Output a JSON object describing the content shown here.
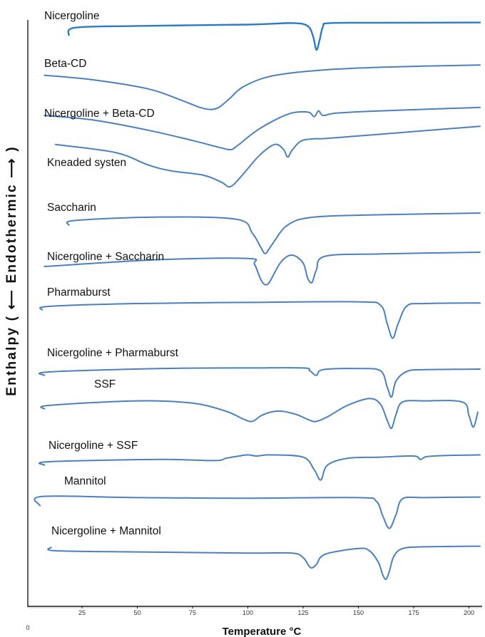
{
  "chart_data": {
    "type": "line",
    "title": "",
    "xlabel": "Temperature °C",
    "ylabel": "Enthalpy ( ⟵ Endothermic ⟶ )",
    "x_ticks": [
      25,
      50,
      75,
      100,
      125,
      150,
      175,
      200
    ],
    "xlim": [
      7,
      205
    ],
    "y_origin_label": "0",
    "grid": false,
    "series": [
      {
        "name": "Nicergoline",
        "x": [
          19,
          22,
          50,
          100,
          120,
          127,
          129.5,
          131,
          132.5,
          134,
          137,
          160,
          205
        ],
        "y": [
          -0.7,
          -0.05,
          0.1,
          0.22,
          0.35,
          0.1,
          -0.8,
          -2.0,
          -1.1,
          0.05,
          0.35,
          0.38,
          0.4
        ]
      },
      {
        "name": "Beta-CD",
        "x": [
          8,
          30,
          55,
          70,
          78,
          83,
          87,
          92,
          98,
          110,
          130,
          160,
          205
        ],
        "y": [
          0.4,
          0,
          -0.8,
          -1.8,
          -2.4,
          -2.6,
          -2.4,
          -1.6,
          -0.6,
          0.3,
          0.8,
          1.1,
          1.3
        ]
      },
      {
        "name": "Nicergoline + Beta-CD",
        "x": [
          8,
          30,
          55,
          75,
          87,
          92,
          95,
          105,
          118,
          127,
          130,
          132,
          134,
          140,
          160,
          205
        ],
        "y": [
          0.5,
          0.1,
          -0.8,
          -1.7,
          -2.3,
          -2.5,
          -2.2,
          -0.7,
          0.6,
          0.8,
          0.4,
          0.9,
          0.5,
          0.7,
          0.9,
          1.2
        ]
      },
      {
        "name": "Kneaded systen",
        "x": [
          13,
          40,
          55,
          65,
          80,
          88,
          92,
          97,
          105,
          112,
          116,
          118,
          120,
          124,
          130,
          140,
          205
        ],
        "y": [
          1.2,
          0.5,
          -0.6,
          -1.1,
          -1.5,
          -2.1,
          -2.5,
          -1.6,
          0.2,
          1.2,
          0.8,
          0.1,
          0.7,
          1.5,
          1.7,
          1.8,
          2.8
        ]
      },
      {
        "name": "Saccharin",
        "x": [
          19,
          22,
          60,
          95,
          102,
          106,
          108,
          111,
          118,
          130,
          160,
          205
        ],
        "y": [
          -0.3,
          0.1,
          0.4,
          0.2,
          -1.0,
          -2.3,
          -2.8,
          -2.0,
          -0.3,
          0.4,
          0.6,
          0.75
        ]
      },
      {
        "name": "Nicergoline + Saccharin",
        "x": [
          8,
          60,
          100,
          103,
          106,
          108,
          110,
          115,
          120,
          125,
          127,
          129,
          131,
          135,
          160,
          205
        ],
        "y": [
          0,
          0.6,
          0.7,
          0.2,
          -1.2,
          -1.6,
          -1.3,
          0.4,
          1.0,
          0.3,
          -1.0,
          -1.4,
          -0.3,
          0.9,
          1.1,
          1.25
        ]
      },
      {
        "name": "Pharmaburst",
        "x": [
          7,
          10,
          50,
          100,
          150,
          160,
          163,
          165.5,
          168,
          172,
          180,
          205
        ],
        "y": [
          -0.3,
          0,
          0.25,
          0.35,
          0.4,
          0.1,
          -1.5,
          -2.8,
          -1.5,
          0.05,
          0.25,
          0.3
        ]
      },
      {
        "name": "Nicergoline + Pharmaburst",
        "x": [
          8,
          10,
          60,
          100,
          125,
          128,
          131,
          134,
          150,
          160,
          163,
          165,
          167,
          172,
          180,
          205
        ],
        "y": [
          -0.3,
          0,
          0.3,
          0.35,
          0.35,
          0.1,
          -0.3,
          0.2,
          0.3,
          0.1,
          -1.3,
          -2.2,
          -0.8,
          0.05,
          0.2,
          0.25
        ]
      },
      {
        "name": "SSF",
        "x": [
          8,
          10,
          50,
          75,
          90,
          98,
          102,
          106,
          110,
          115,
          122,
          128,
          131,
          136,
          145,
          155,
          160,
          163,
          165,
          167,
          170,
          180,
          197,
          200,
          202,
          204
        ],
        "y": [
          -0.3,
          0,
          0.4,
          0.2,
          -0.5,
          -1.2,
          -1.4,
          -0.9,
          -0.6,
          -0.5,
          -0.8,
          -1.3,
          -1.4,
          -1.0,
          0,
          0.6,
          0.1,
          -1.3,
          -2.0,
          -0.8,
          0.3,
          0.4,
          0.3,
          -0.9,
          -1.9,
          -0.6
        ]
      },
      {
        "name": "Nicergoline + SSF",
        "x": [
          8,
          10,
          60,
          85,
          90,
          96,
          100,
          104,
          110,
          125,
          130,
          133,
          136,
          145,
          160,
          175,
          178,
          181,
          190,
          205
        ],
        "y": [
          -0.3,
          0,
          0.2,
          0.1,
          0.3,
          0.5,
          0.6,
          0.5,
          0.6,
          0.4,
          -0.7,
          -1.6,
          -0.3,
          0.3,
          0.4,
          0.5,
          0.2,
          0.45,
          0.55,
          0.6
        ]
      },
      {
        "name": "Mannitol",
        "x": [
          6,
          7,
          50,
          100,
          150,
          158,
          161,
          164,
          167,
          170,
          180,
          205
        ],
        "y": [
          -0.6,
          0.2,
          0.1,
          0.05,
          0.1,
          -0.2,
          -1.5,
          -2.6,
          -1.4,
          0,
          0.1,
          0.15
        ]
      },
      {
        "name": "Nicergoline + Mannitol",
        "x": [
          11,
          13,
          50,
          100,
          120,
          125,
          127.5,
          129,
          131,
          135,
          150,
          155,
          159,
          161,
          162.5,
          164,
          166,
          170,
          180,
          205
        ],
        "y": [
          0.3,
          0,
          -0.1,
          -0.2,
          -0.2,
          -0.6,
          -1.3,
          -1.5,
          -1.2,
          -0.3,
          0.2,
          0,
          -1.0,
          -2.1,
          -2.5,
          -1.8,
          -0.5,
          0.2,
          0.35,
          0.4
        ]
      }
    ]
  }
}
